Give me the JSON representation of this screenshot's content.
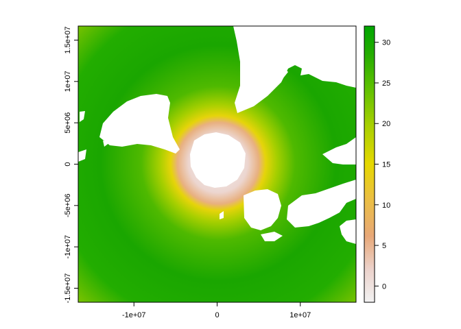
{
  "map": {
    "projection": "south-polar stereographic",
    "x_ticks": [
      {
        "value": -10000000,
        "label": "-1e+07"
      },
      {
        "value": 0,
        "label": "0"
      },
      {
        "value": 10000000,
        "label": "1e+07"
      }
    ],
    "y_ticks": [
      {
        "value": 15000000,
        "label": "1.5e+07"
      },
      {
        "value": 10000000,
        "label": "1e+07"
      },
      {
        "value": 5000000,
        "label": "5e+06"
      },
      {
        "value": 0,
        "label": "0"
      },
      {
        "value": -5000000,
        "label": "-5e+06"
      },
      {
        "value": -10000000,
        "label": "-1e+07"
      },
      {
        "value": -15000000,
        "label": "-1.5e+07"
      }
    ],
    "x_range": [
      -16700000,
      16700000
    ],
    "y_range": [
      -16700000,
      16700000
    ],
    "land_color": "#ffffff",
    "legend": {
      "ticks": [
        {
          "value": 30,
          "label": "30"
        },
        {
          "value": 25,
          "label": "25"
        },
        {
          "value": 20,
          "label": "20"
        },
        {
          "value": 15,
          "label": "15"
        },
        {
          "value": 10,
          "label": "10"
        },
        {
          "value": 5,
          "label": "5"
        },
        {
          "value": 0,
          "label": "0"
        }
      ],
      "range": [
        -2,
        32
      ],
      "colors": [
        "#f2f2f2",
        "#e8c1b0",
        "#e8a878",
        "#ebc040",
        "#e6d800",
        "#a8d000",
        "#5cc000",
        "#24ac00",
        "#00a600"
      ]
    }
  }
}
